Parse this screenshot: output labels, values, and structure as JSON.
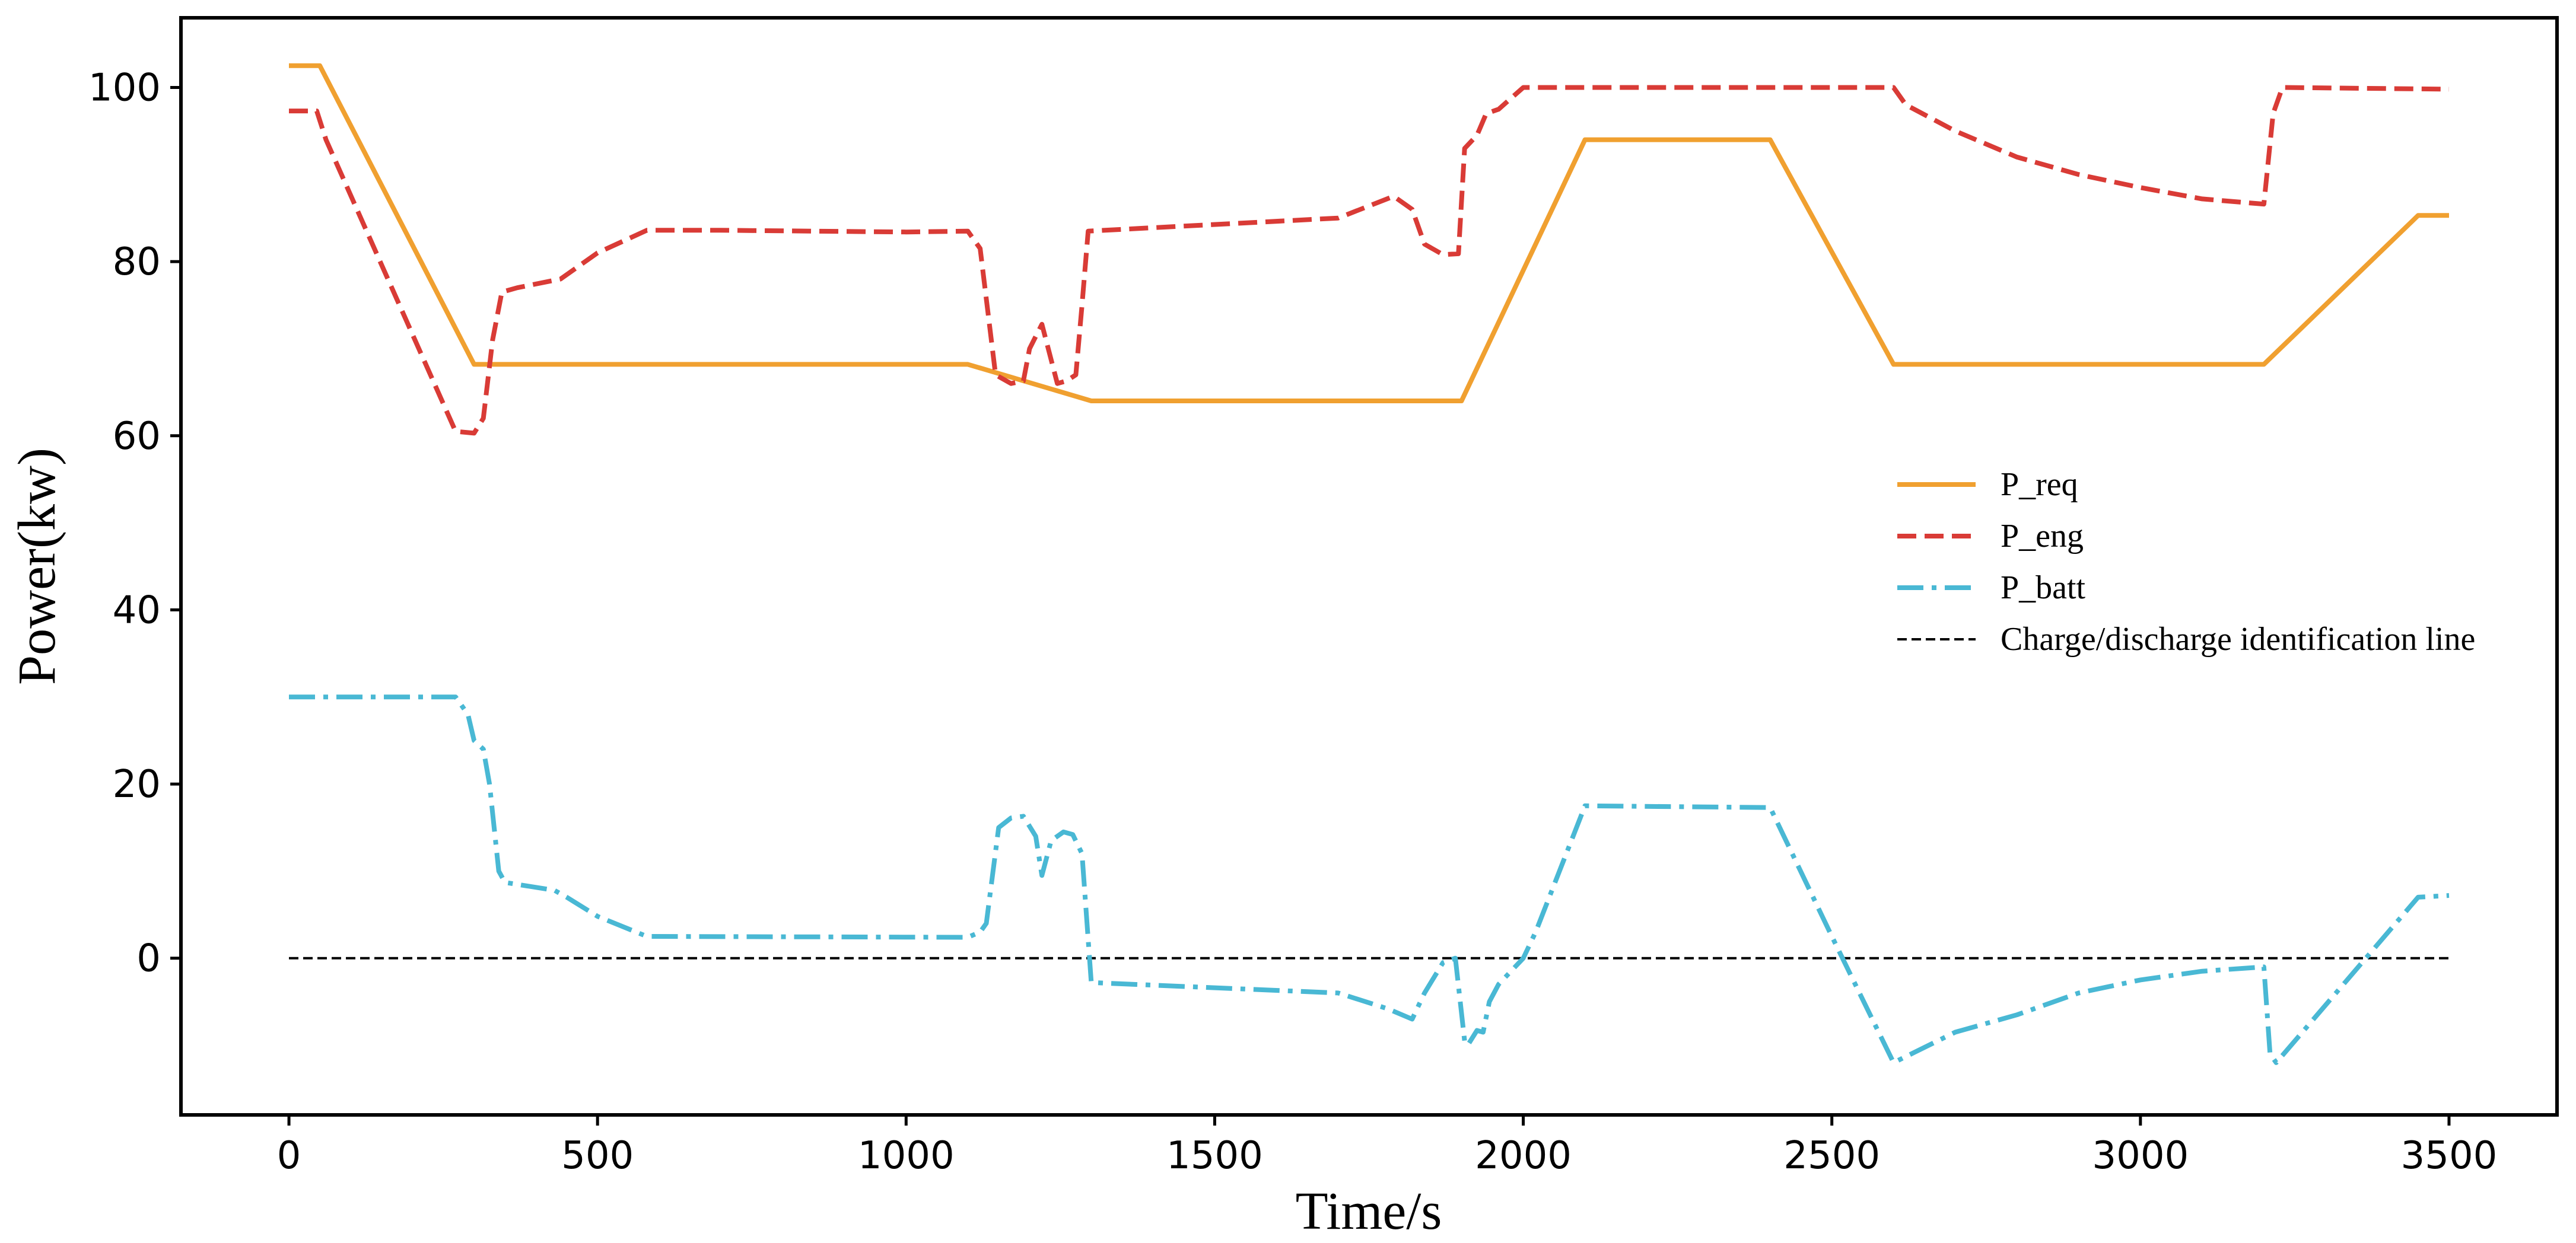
{
  "chart_data": {
    "type": "line",
    "title": "",
    "xlabel": "Time/s",
    "ylabel": "Power(kw)",
    "xlim": [
      -175,
      3675
    ],
    "ylim": [
      -18,
      108
    ],
    "xticks": [
      0,
      500,
      1000,
      1500,
      2000,
      2500,
      3000,
      3500
    ],
    "yticks": [
      0,
      20,
      40,
      60,
      80,
      100
    ],
    "grid": false,
    "legend_position": "center-right",
    "series": [
      {
        "name": "P_req",
        "color": "#f0a030",
        "style": "solid",
        "points": [
          [
            0,
            102.5
          ],
          [
            50,
            102.5
          ],
          [
            300,
            68.2
          ],
          [
            1100,
            68.2
          ],
          [
            1300,
            64
          ],
          [
            1900,
            64
          ],
          [
            2100,
            94
          ],
          [
            2400,
            94
          ],
          [
            2600,
            68.2
          ],
          [
            3200,
            68.2
          ],
          [
            3450,
            85.3
          ],
          [
            3500,
            85.3
          ]
        ]
      },
      {
        "name": "P_eng",
        "color": "#d93b36",
        "style": "dashed",
        "points": [
          [
            0,
            97.3
          ],
          [
            45,
            97.3
          ],
          [
            60,
            94
          ],
          [
            270,
            60.5
          ],
          [
            300,
            60.3
          ],
          [
            315,
            62
          ],
          [
            330,
            71
          ],
          [
            345,
            76.5
          ],
          [
            370,
            77
          ],
          [
            440,
            78
          ],
          [
            500,
            81
          ],
          [
            580,
            83.6
          ],
          [
            700,
            83.6
          ],
          [
            1000,
            83.4
          ],
          [
            1100,
            83.5
          ],
          [
            1120,
            81.5
          ],
          [
            1145,
            67
          ],
          [
            1170,
            66
          ],
          [
            1190,
            66.3
          ],
          [
            1200,
            70
          ],
          [
            1220,
            72.8
          ],
          [
            1245,
            66
          ],
          [
            1260,
            66.3
          ],
          [
            1275,
            67
          ],
          [
            1285,
            75
          ],
          [
            1295,
            83.5
          ],
          [
            1700,
            85
          ],
          [
            1790,
            87.5
          ],
          [
            1820,
            86
          ],
          [
            1840,
            82
          ],
          [
            1870,
            80.8
          ],
          [
            1895,
            80.9
          ],
          [
            1905,
            93
          ],
          [
            1925,
            94.5
          ],
          [
            1940,
            97
          ],
          [
            1960,
            97.5
          ],
          [
            2000,
            100
          ],
          [
            2600,
            100
          ],
          [
            2620,
            98
          ],
          [
            2700,
            95
          ],
          [
            2800,
            92
          ],
          [
            2900,
            90
          ],
          [
            3000,
            88.5
          ],
          [
            3100,
            87.2
          ],
          [
            3200,
            86.6
          ],
          [
            3215,
            97
          ],
          [
            3230,
            100
          ],
          [
            3500,
            99.8
          ]
        ]
      },
      {
        "name": "P_batt",
        "color": "#49b8d4",
        "style": "dashdot",
        "points": [
          [
            0,
            30
          ],
          [
            270,
            30
          ],
          [
            290,
            28
          ],
          [
            300,
            25
          ],
          [
            315,
            24
          ],
          [
            325,
            20
          ],
          [
            340,
            10
          ],
          [
            350,
            8.7
          ],
          [
            430,
            7.8
          ],
          [
            450,
            7
          ],
          [
            500,
            4.8
          ],
          [
            580,
            2.5
          ],
          [
            1100,
            2.4
          ],
          [
            1120,
            3
          ],
          [
            1130,
            4
          ],
          [
            1150,
            15
          ],
          [
            1170,
            16.1
          ],
          [
            1190,
            16.3
          ],
          [
            1210,
            14
          ],
          [
            1220,
            9.5
          ],
          [
            1235,
            13.5
          ],
          [
            1255,
            14.5
          ],
          [
            1270,
            14.2
          ],
          [
            1285,
            12
          ],
          [
            1300,
            -2.8
          ],
          [
            1700,
            -4
          ],
          [
            1780,
            -5.8
          ],
          [
            1820,
            -7
          ],
          [
            1840,
            -4
          ],
          [
            1870,
            -0.5
          ],
          [
            1890,
            0
          ],
          [
            1905,
            -9.5
          ],
          [
            1910,
            -10
          ],
          [
            1925,
            -8.3
          ],
          [
            1935,
            -8.5
          ],
          [
            1945,
            -5
          ],
          [
            1960,
            -3
          ],
          [
            2000,
            0
          ],
          [
            2020,
            3
          ],
          [
            2100,
            17.5
          ],
          [
            2400,
            17.3
          ],
          [
            2500,
            2.5
          ],
          [
            2600,
            -12
          ],
          [
            2700,
            -8.5
          ],
          [
            2800,
            -6.5
          ],
          [
            2900,
            -4
          ],
          [
            3000,
            -2.5
          ],
          [
            3100,
            -1.5
          ],
          [
            3200,
            -1
          ],
          [
            3210,
            -11
          ],
          [
            3220,
            -12
          ],
          [
            3450,
            7
          ],
          [
            3500,
            7.2
          ]
        ]
      },
      {
        "name": "Charge/discharge identification line",
        "color": "#000000",
        "style": "thin-dashed",
        "points": [
          [
            0,
            0
          ],
          [
            3500,
            0
          ]
        ]
      }
    ]
  }
}
